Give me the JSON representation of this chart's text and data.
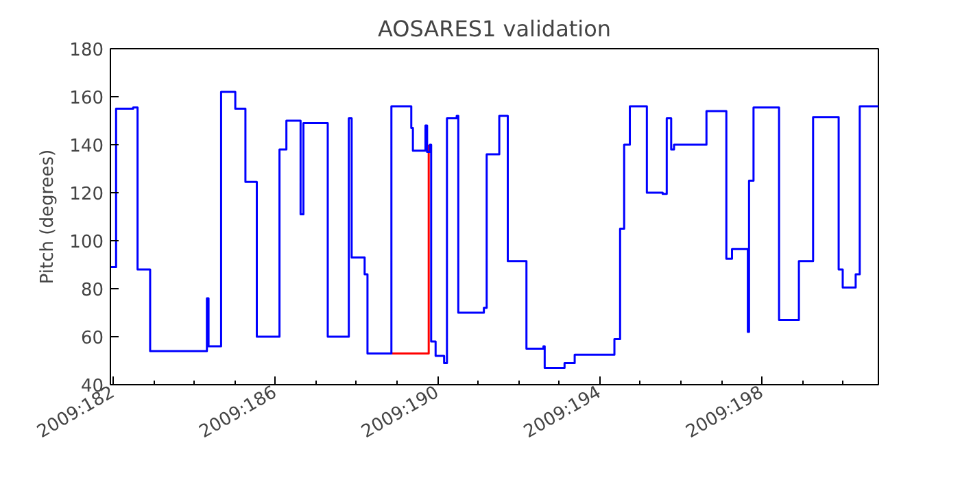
{
  "chart_data": {
    "type": "step",
    "title": "AOSARES1 validation",
    "ylabel": "Pitch (degrees)",
    "xlim": [
      "2009-06-30T22:19",
      "2009-07-19T20:53"
    ],
    "ylim": [
      40,
      180
    ],
    "yticks": [
      40,
      60,
      80,
      100,
      120,
      140,
      160,
      180
    ],
    "xticks": [
      {
        "value": "2009-07-01",
        "label": "2009:182"
      },
      {
        "value": "2009-07-02",
        "label": null
      },
      {
        "value": "2009-07-03",
        "label": null
      },
      {
        "value": "2009-07-04",
        "label": null
      },
      {
        "value": "2009-07-05",
        "label": "2009:186"
      },
      {
        "value": "2009-07-06",
        "label": null
      },
      {
        "value": "2009-07-07",
        "label": null
      },
      {
        "value": "2009-07-08",
        "label": null
      },
      {
        "value": "2009-07-09",
        "label": "2009:190"
      },
      {
        "value": "2009-07-10",
        "label": null
      },
      {
        "value": "2009-07-11",
        "label": null
      },
      {
        "value": "2009-07-12",
        "label": null
      },
      {
        "value": "2009-07-13",
        "label": "2009:194"
      },
      {
        "value": "2009-07-14",
        "label": null
      },
      {
        "value": "2009-07-15",
        "label": null
      },
      {
        "value": "2009-07-16",
        "label": null
      },
      {
        "value": "2009-07-17",
        "label": "2009:198"
      },
      {
        "value": "2009-07-18",
        "label": null
      },
      {
        "value": "2009-07-19",
        "label": null
      }
    ],
    "grid": false,
    "series": [
      {
        "type": "line",
        "color": "#ff0000",
        "x": [
          "2009-07-07T21:07",
          "2009-07-08T18:43",
          "2009-07-08T18:43"
        ],
        "values": [
          53,
          53,
          140
        ]
      },
      {
        "color": "#0000ff",
        "x": [
          "2009-06-30T22:19",
          "2009-07-01T01:41",
          "2009-07-01T11:46",
          "2009-07-01T14:24",
          "2009-07-01T21:50",
          "2009-07-03T07:26",
          "2009-07-03T08:24",
          "2009-07-03T15:50",
          "2009-07-04T00:14",
          "2009-07-04T06:14",
          "2009-07-04T12:58",
          "2009-07-05T02:24",
          "2009-07-05T06:29",
          "2009-07-05T14:53",
          "2009-07-05T16:34",
          "2009-07-06T06:58",
          "2009-07-06T19:26",
          "2009-07-06T21:07",
          "2009-07-07T04:48",
          "2009-07-07T06:29",
          "2009-07-07T20:38",
          "2009-07-08T08:24",
          "2009-07-08T09:22",
          "2009-07-08T16:48",
          "2009-07-08T17:46",
          "2009-07-08T19:26",
          "2009-07-08T20:10",
          "2009-07-08T22:48",
          "2009-07-09T03:50",
          "2009-07-09T05:31",
          "2009-07-09T11:17",
          "2009-07-09T12:14",
          "2009-07-10T03:22",
          "2009-07-10T05:02",
          "2009-07-10T12:29",
          "2009-07-10T17:31",
          "2009-07-11T04:34",
          "2009-07-11T14:38",
          "2009-07-11T15:22",
          "2009-07-12T03:07",
          "2009-07-12T09:07",
          "2009-07-13T08:38",
          "2009-07-13T12:00",
          "2009-07-13T14:24",
          "2009-07-13T17:46",
          "2009-07-14T03:50",
          "2009-07-14T13:12",
          "2009-07-14T15:36",
          "2009-07-14T18:14",
          "2009-07-14T19:55",
          "2009-07-15T15:07",
          "2009-07-16T02:53",
          "2009-07-16T06:14",
          "2009-07-16T15:36",
          "2009-07-16T16:19",
          "2009-07-16T18:58",
          "2009-07-17T10:05",
          "2009-07-17T21:50",
          "2009-07-18T06:14",
          "2009-07-18T21:22",
          "2009-07-18T23:46",
          "2009-07-19T07:26",
          "2009-07-19T09:50",
          "2009-07-19T20:53"
        ],
        "values": [
          89,
          155,
          155.5,
          88,
          54,
          76,
          56,
          162,
          155,
          124.5,
          60,
          138,
          150,
          111,
          149,
          60,
          151,
          93,
          86,
          53,
          156,
          147,
          137.5,
          148,
          137,
          140,
          58,
          52,
          49,
          151,
          152,
          70,
          72,
          136,
          152,
          91.5,
          55,
          56,
          47,
          49,
          52.5,
          59,
          105,
          140,
          156,
          120,
          119.5,
          151,
          138,
          140,
          154,
          92.5,
          96.5,
          62,
          125,
          155.5,
          67,
          91.5,
          151.5,
          88,
          80.5,
          86,
          156,
          156
        ]
      }
    ]
  }
}
